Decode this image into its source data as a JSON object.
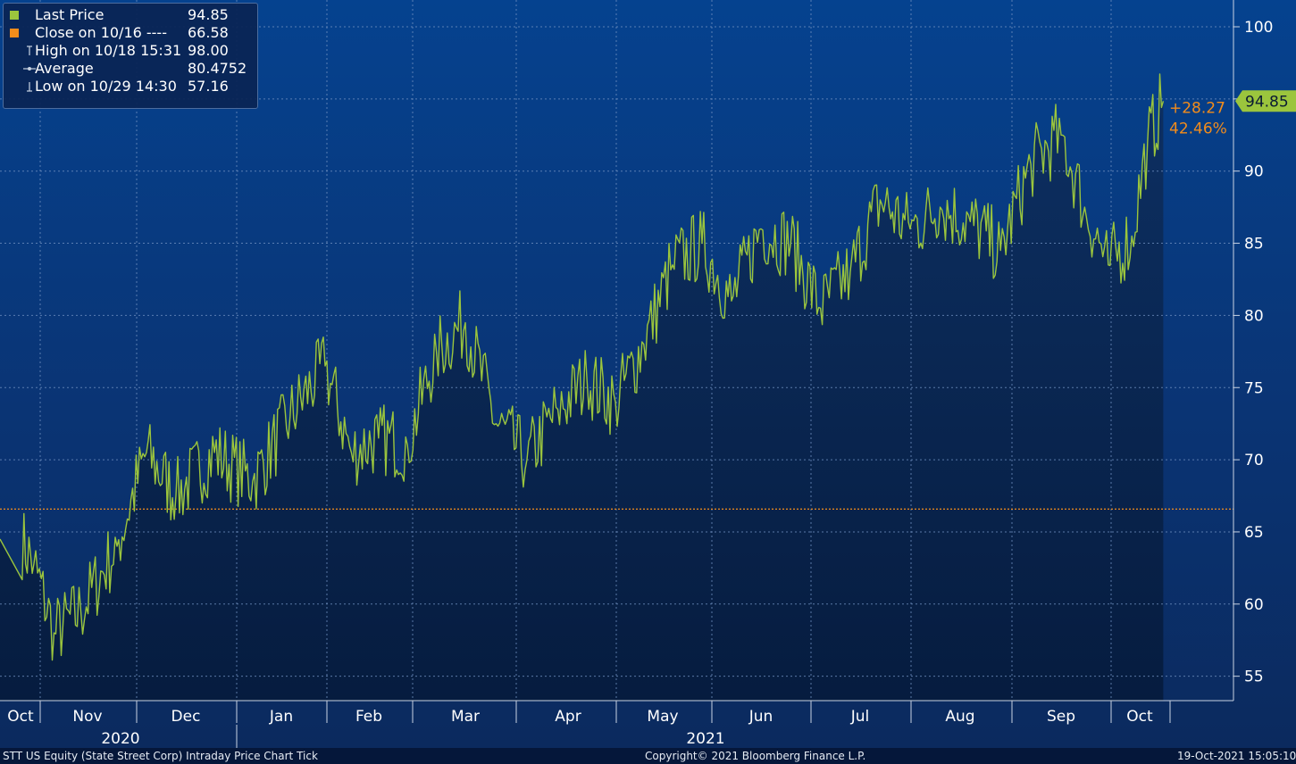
{
  "legend": {
    "items": [
      {
        "label": "Last Price",
        "value": "94.85",
        "symbol": "square",
        "color": "#9bc53d"
      },
      {
        "label": "Close on 10/16 ----",
        "value": "66.58",
        "symbol": "square",
        "color": "#f28c1b"
      },
      {
        "label": "High on 10/18 15:31",
        "value": "98.00",
        "symbol": "high-marker-icon",
        "color": "#c9d3e3"
      },
      {
        "label": "Average",
        "value": "80.4752",
        "symbol": "average-marker-icon",
        "color": "#c9d3e3"
      },
      {
        "label": "Low on 10/29 14:30",
        "value": "57.16",
        "symbol": "low-marker-icon",
        "color": "#c9d3e3"
      }
    ]
  },
  "footer": {
    "left": "STT US Equity (State Street Corp) Intraday Price Chart   Tick",
    "center": "Copyright© 2021 Bloomberg Finance L.P.",
    "right": "19-Oct-2021 15:05:10"
  },
  "chart_data": {
    "type": "line",
    "price_line_color": "#9bc53d",
    "close_line_color": "#f28c1b",
    "last_price": 94.85,
    "last_price_label": "94.85",
    "close_reference": 66.58,
    "change_abs": "+28.27",
    "change_pct": "42.46%",
    "ylim": [
      53,
      102
    ],
    "y_ticks": [
      55,
      60,
      65,
      70,
      75,
      80,
      85,
      90,
      95,
      100
    ],
    "y_tick_labels": [
      "55",
      "60",
      "65",
      "70",
      "75",
      "80",
      "85",
      "90",
      "95",
      "100"
    ],
    "grid": true,
    "months": [
      "Oct",
      "Nov",
      "Dec",
      "Jan",
      "Feb",
      "Mar",
      "Apr",
      "May",
      "Jun",
      "Jul",
      "Aug",
      "Sep",
      "Oct"
    ],
    "years": [
      "2020",
      "2021"
    ],
    "series": [
      {
        "x": [
          0,
          0.2,
          0.5,
          0.9,
          1.3,
          1.6,
          1.9,
          2.3,
          2.7,
          3.1,
          3.5,
          3.8,
          4.1,
          4.4,
          4.7,
          5.0,
          5.3,
          5.6,
          5.9,
          6.2,
          6.5,
          6.8,
          7.1,
          7.4,
          7.7,
          8.0,
          8.3,
          8.6,
          8.9,
          9.2,
          9.5,
          9.8,
          10.1,
          10.4,
          10.7,
          11.0,
          11.3,
          11.6,
          11.9,
          12.1,
          12.3
        ],
        "y": [
          64.5,
          62.8,
          58.0,
          59.5,
          64.0,
          70.5,
          67.5,
          70.5,
          68.5,
          73.0,
          76.5,
          70.5,
          71.5,
          71.0,
          77.5,
          79.5,
          72.5,
          70.0,
          73.5,
          75.5,
          74.0,
          78.0,
          83.5,
          85.0,
          81.0,
          86.0,
          85.0,
          80.5,
          83.0,
          88.0,
          86.0,
          87.5,
          86.5,
          84.5,
          90.5,
          92.5,
          87.5,
          83.5,
          85.5,
          92.0,
          94.85
        ]
      }
    ],
    "series_min": 57.16,
    "series_max": 98.0
  }
}
